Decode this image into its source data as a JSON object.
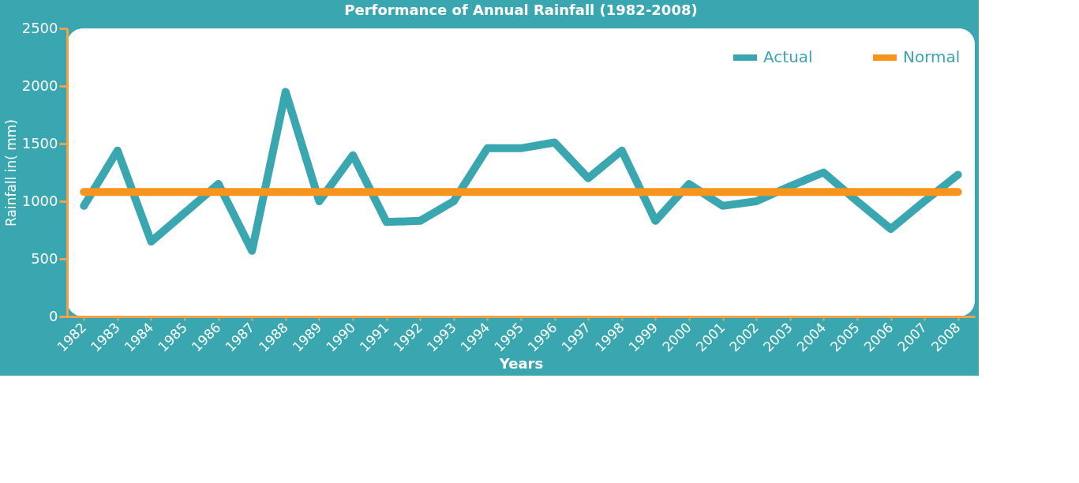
{
  "chart_data": {
    "type": "line",
    "title": "Performance of Annual Rainfall (1982-2008)",
    "xlabel": "Years",
    "ylabel": "Rainfall in( mm)",
    "categories": [
      "1982",
      "1983",
      "1984",
      "1985",
      "1986",
      "1987",
      "1988",
      "1989",
      "1990",
      "1991",
      "1992",
      "1993",
      "1994",
      "1995",
      "1996",
      "1997",
      "1998",
      "1999",
      "2000",
      "2001",
      "2002",
      "2003",
      "2004",
      "2005",
      "2006",
      "2007",
      "2008"
    ],
    "series": [
      {
        "name": "Actual",
        "color": "#3aa6b0",
        "values": [
          960,
          1440,
          650,
          900,
          1150,
          570,
          1950,
          1000,
          1400,
          820,
          830,
          1000,
          1460,
          1460,
          1510,
          1200,
          1440,
          830,
          1150,
          960,
          1000,
          1130,
          1250,
          1000,
          760,
          1000,
          1230
        ]
      },
      {
        "name": "Normal",
        "color": "#f7941d",
        "values": [
          1080,
          1080,
          1080,
          1080,
          1080,
          1080,
          1080,
          1080,
          1080,
          1080,
          1080,
          1080,
          1080,
          1080,
          1080,
          1080,
          1080,
          1080,
          1080,
          1080,
          1080,
          1080,
          1080,
          1080,
          1080,
          1080,
          1080
        ]
      }
    ],
    "ylim": [
      0,
      2500
    ],
    "yticks": [
      0,
      500,
      1000,
      1500,
      2000,
      2500
    ],
    "grid": false,
    "legend": "top right",
    "line_style": "solid",
    "marker": "none"
  }
}
